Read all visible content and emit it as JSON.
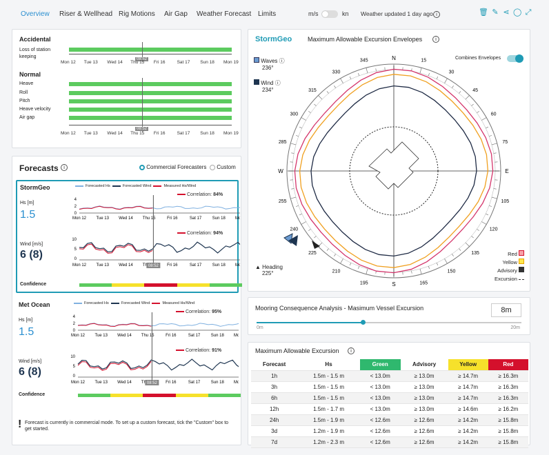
{
  "nav": {
    "tabs": [
      "Overview",
      "Riser & Wellhead",
      "Rig Motions",
      "Air Gap",
      "Weather Forecast",
      "Limits"
    ],
    "unit_left": "m/s",
    "unit_right": "kn",
    "updated": "Weather updated 1 day ago"
  },
  "colors": {
    "accent": "#2a8fd0",
    "green": "#5ccb5f",
    "yellow": "#f6e12b",
    "red": "#d4102c",
    "teal": "#1f9bb5"
  },
  "timeline": {
    "days": [
      "Mon 12",
      "Tue 13",
      "Wed 14",
      "Thu 15",
      "Fri 16",
      "Sat 17",
      "Sun 18",
      "Mon 19"
    ],
    "now_label": "08:52",
    "accidental": {
      "heading": "Accidental",
      "rows": [
        "Loss of station keeping"
      ]
    },
    "normal": {
      "heading": "Normal",
      "rows": [
        "Heave",
        "Roll",
        "Pitch",
        "Heave velocity",
        "Air gap"
      ]
    }
  },
  "forecasts": {
    "title": "Forecasts",
    "opt_commercial": "Commercial Forecasters",
    "opt_custom": "Custom",
    "legend": [
      "Forecasted Hs",
      "Forecasted Wind",
      "Measured Hs/Wind"
    ],
    "confidence_label": "Confidence",
    "providers": [
      {
        "name": "StormGeo",
        "hs_label": "Hs [m]",
        "hs_value": "1.5",
        "hs_corr_label": "Correlation:",
        "hs_corr": "84%",
        "wind_label": "Wind [m/s]",
        "wind_value": "6 (8)",
        "wind_corr_label": "Correlation:",
        "wind_corr": "94%"
      },
      {
        "name": "Met Ocean",
        "hs_label": "Hs [m]",
        "hs_value": "1.5",
        "hs_corr_label": "Correlation:",
        "hs_corr": "95%",
        "wind_label": "Wind [m/s]",
        "wind_value": "6 (8)",
        "wind_corr_label": "Correlation:",
        "wind_corr": "91%"
      }
    ],
    "hs_ticks": [
      "4",
      "2",
      "0"
    ],
    "wind_ticks": [
      "10",
      "5",
      "0"
    ],
    "note": "Forecast is currently in commercial mode. To set up a custom forecast, tick the \"Custom\" box to get started."
  },
  "envelope": {
    "brand": "StormGeo",
    "title": "Maximum Allowable Excursion Envelopes",
    "waves_label": "Waves",
    "waves_value": "236°",
    "wind_label": "Wind",
    "wind_value": "234°",
    "combine_label": "Combines Envelopes",
    "heading_label": "Heading",
    "heading_value": "225°",
    "compass": {
      "N": "N",
      "E": "E",
      "S": "S",
      "W": "W",
      "degs": [
        "15",
        "30",
        "45",
        "60",
        "75",
        "105",
        "120",
        "135",
        "150",
        "165",
        "195",
        "210",
        "225",
        "240",
        "255",
        "285",
        "300",
        "315",
        "330",
        "345"
      ]
    },
    "legend": [
      "Red",
      "Yellow",
      "Advisory",
      "Excursion"
    ]
  },
  "mooring": {
    "title": "Mooring Consequence Analysis - Masimum Vessel Excursion",
    "value": "8m",
    "min": "0m",
    "max": "20m",
    "fraction": 0.4
  },
  "excursion": {
    "title": "Maximum Allowable Excursion",
    "headers": [
      "Forecast",
      "Hs",
      "Green",
      "Advisory",
      "Yellow",
      "Red"
    ],
    "rows": [
      [
        "1h",
        "1.5m - 1.5 m",
        "< 13.0m",
        "≥ 13.0m",
        "≥ 14.7m",
        "≥ 16.3m"
      ],
      [
        "3h",
        "1.5m - 1.5 m",
        "< 13.0m",
        "≥ 13.0m",
        "≥ 14.7m",
        "≥ 16.3m"
      ],
      [
        "6h",
        "1.5m - 1.5 m",
        "< 13.0m",
        "≥ 13.0m",
        "≥ 14.7m",
        "≥ 16.3m"
      ],
      [
        "12h",
        "1.5m - 1.7 m",
        "< 13.0m",
        "≥ 13.0m",
        "≥ 14.6m",
        "≥ 16.2m"
      ],
      [
        "24h",
        "1.5m - 1.9 m",
        "< 12.6m",
        "≥ 12.6m",
        "≥ 14.2m",
        "≥ 15.8m"
      ],
      [
        "3d",
        "1.2m - 1.9 m",
        "< 12.6m",
        "≥ 12.6m",
        "≥ 14.2m",
        "≥ 15.8m"
      ],
      [
        "7d",
        "1.2m - 2.3 m",
        "< 12.6m",
        "≥ 12.6m",
        "≥ 14.2m",
        "≥ 15.8m"
      ]
    ]
  }
}
